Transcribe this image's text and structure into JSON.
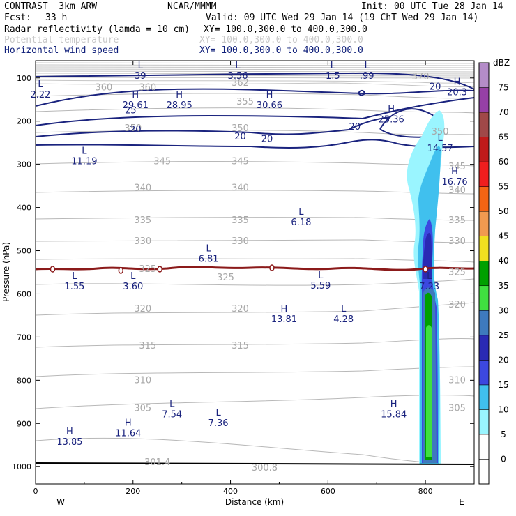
{
  "header": {
    "title": "CONTRAST  3km ARW",
    "org": "NCAR/MMMM",
    "init": "Init: 00 UTC Tue 28 Jan 14",
    "fcst_label": "Fcst:",
    "fcst_value": "33 h",
    "valid": "Valid: 09 UTC Wed 29 Jan 14 (19 ChT Wed 29 Jan 14)",
    "fields": [
      {
        "name": "Radar reflectivity (lamda = 10 cm)",
        "xy": "XY= 100.0,300.0 to 400.0,300.0"
      },
      {
        "name": "Potential temperature",
        "xy": "XY= 100.0,300.0 to 400.0,300.0"
      },
      {
        "name": "Horizontal wind speed",
        "xy": "XY= 100.0,300.0 to 400.0,300.0"
      }
    ]
  },
  "chart_data": {
    "type": "cross-section",
    "xlabel": "Distance (km)",
    "ylabel": "Pressure (hPa)",
    "xlim": [
      0,
      900
    ],
    "ylim": [
      1040,
      60
    ],
    "x_ticks": [
      0,
      200,
      400,
      600,
      800
    ],
    "y_ticks": [
      100,
      200,
      300,
      400,
      500,
      600,
      700,
      800,
      900,
      1000
    ],
    "west_label": "W",
    "east_label": "E",
    "colorbar": {
      "unit": "dBZ",
      "levels": [
        0,
        5,
        10,
        15,
        20,
        25,
        30,
        35,
        40,
        45,
        50,
        55,
        60,
        65,
        70,
        75
      ],
      "colors": [
        "#ffffff",
        "#9af5ff",
        "#40c0ee",
        "#3c48e0",
        "#2a2ab4",
        "#3e7abe",
        "#40e040",
        "#00a000",
        "#f0e020",
        "#f09a50",
        "#f46414",
        "#f01e1e",
        "#c01a1a",
        "#a04848",
        "#9640a6",
        "#b48cc8"
      ]
    },
    "theta_labels": [
      {
        "x": 140,
        "p": 122,
        "v": "360"
      },
      {
        "x": 230,
        "p": 122,
        "v": "360"
      },
      {
        "x": 420,
        "p": 112,
        "v": "362"
      },
      {
        "x": 790,
        "p": 97,
        "v": "370"
      },
      {
        "x": 430,
        "p": 155,
        "v": "355"
      },
      {
        "x": 200,
        "p": 217,
        "v": "350"
      },
      {
        "x": 420,
        "p": 217,
        "v": "350"
      },
      {
        "x": 830,
        "p": 225,
        "v": "350"
      },
      {
        "x": 260,
        "p": 293,
        "v": "345"
      },
      {
        "x": 420,
        "p": 293,
        "v": "345"
      },
      {
        "x": 865,
        "p": 305,
        "v": "345"
      },
      {
        "x": 220,
        "p": 355,
        "v": "340"
      },
      {
        "x": 420,
        "p": 355,
        "v": "340"
      },
      {
        "x": 865,
        "p": 360,
        "v": "340"
      },
      {
        "x": 220,
        "p": 430,
        "v": "335"
      },
      {
        "x": 420,
        "p": 430,
        "v": "335"
      },
      {
        "x": 865,
        "p": 430,
        "v": "335"
      },
      {
        "x": 220,
        "p": 478,
        "v": "330"
      },
      {
        "x": 420,
        "p": 478,
        "v": "330"
      },
      {
        "x": 865,
        "p": 478,
        "v": "330"
      },
      {
        "x": 230,
        "p": 543,
        "v": "325"
      },
      {
        "x": 390,
        "p": 562,
        "v": "325"
      },
      {
        "x": 865,
        "p": 550,
        "v": "325"
      },
      {
        "x": 220,
        "p": 635,
        "v": "320"
      },
      {
        "x": 420,
        "p": 635,
        "v": "320"
      },
      {
        "x": 865,
        "p": 625,
        "v": "320"
      },
      {
        "x": 230,
        "p": 720,
        "v": "315"
      },
      {
        "x": 420,
        "p": 720,
        "v": "315"
      },
      {
        "x": 220,
        "p": 800,
        "v": "310"
      },
      {
        "x": 865,
        "p": 800,
        "v": "310"
      },
      {
        "x": 220,
        "p": 865,
        "v": "305"
      },
      {
        "x": 865,
        "p": 865,
        "v": "305"
      },
      {
        "x": 250,
        "p": 990,
        "v": "301.4"
      },
      {
        "x": 470,
        "p": 1003,
        "v": "300.8"
      }
    ],
    "hl_marks": [
      {
        "type": "L",
        "x": 215,
        "p": 84,
        "v": "39"
      },
      {
        "type": "L",
        "x": 415,
        "p": 84,
        "v": "3.56"
      },
      {
        "type": "L",
        "x": 610,
        "p": 84,
        "v": "1.5"
      },
      {
        "type": "L",
        "x": 680,
        "p": 84,
        "v": ".99"
      },
      {
        "type": "L",
        "x": 10,
        "p": 128,
        "v": "2.22"
      },
      {
        "type": "H",
        "x": 205,
        "p": 152,
        "v": "29.61"
      },
      {
        "type": "H",
        "x": 295,
        "p": 152,
        "v": "28.95"
      },
      {
        "type": "H",
        "x": 480,
        "p": 152,
        "v": "30.66"
      },
      {
        "type": "H",
        "x": 865,
        "p": 122,
        "v": "20.3"
      },
      {
        "type": "H",
        "x": 730,
        "p": 185,
        "v": "25.36"
      },
      {
        "type": "L",
        "x": 830,
        "p": 252,
        "v": "14.57"
      },
      {
        "type": "L",
        "x": 100,
        "p": 282,
        "v": "11.19"
      },
      {
        "type": "H",
        "x": 860,
        "p": 330,
        "v": "16.76"
      },
      {
        "type": "L",
        "x": 545,
        "p": 423,
        "v": "6.18"
      },
      {
        "type": "L",
        "x": 355,
        "p": 508,
        "v": "6.81"
      },
      {
        "type": "L",
        "x": 80,
        "p": 572,
        "v": "1.55"
      },
      {
        "type": "L",
        "x": 200,
        "p": 572,
        "v": "3.60"
      },
      {
        "type": "L",
        "x": 585,
        "p": 570,
        "v": "5.59"
      },
      {
        "type": "L",
        "x": 808,
        "p": 572,
        "v": "7.23"
      },
      {
        "type": "H",
        "x": 510,
        "p": 648,
        "v": "13.81"
      },
      {
        "type": "L",
        "x": 632,
        "p": 648,
        "v": "4.28"
      },
      {
        "type": "H",
        "x": 735,
        "p": 868,
        "v": "15.84"
      },
      {
        "type": "L",
        "x": 280,
        "p": 868,
        "v": "7.54"
      },
      {
        "type": "L",
        "x": 375,
        "p": 888,
        "v": "7.36"
      },
      {
        "type": "H",
        "x": 190,
        "p": 912,
        "v": "11.64"
      },
      {
        "type": "H",
        "x": 70,
        "p": 932,
        "v": "13.85"
      }
    ],
    "wind_labels": [
      {
        "x": 195,
        "p": 174,
        "v": "25"
      },
      {
        "x": 205,
        "p": 218,
        "v": "20"
      },
      {
        "x": 420,
        "p": 234,
        "v": "20"
      },
      {
        "x": 475,
        "p": 240,
        "v": "20"
      },
      {
        "x": 655,
        "p": 212,
        "v": "20"
      },
      {
        "x": 820,
        "p": 119,
        "v": "20"
      }
    ],
    "tropopause_markers": [
      [
        35,
        0
      ],
      [
        175,
        2
      ],
      [
        255,
        0
      ],
      [
        485,
        -2
      ],
      [
        800,
        0
      ]
    ]
  }
}
